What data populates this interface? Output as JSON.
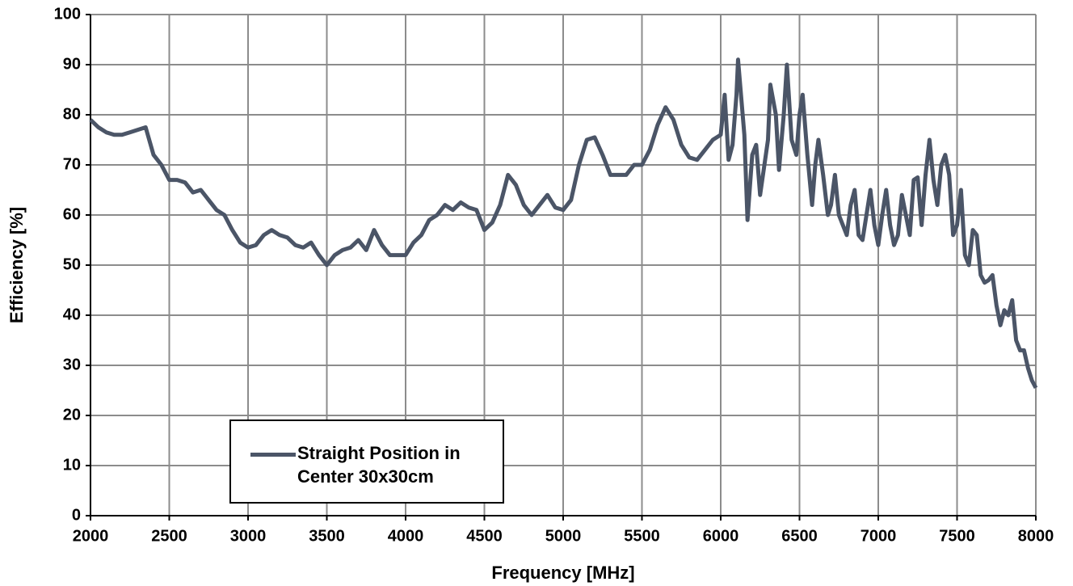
{
  "chart_data": {
    "type": "line",
    "xlabel": "Frequency [MHz]",
    "ylabel": "Efficiency [%]",
    "xlim": [
      2000,
      8000
    ],
    "xticks": [
      2000,
      2500,
      3000,
      3500,
      4000,
      4500,
      5000,
      5500,
      6000,
      6500,
      7000,
      7500,
      8000
    ],
    "ylim": [
      0,
      100
    ],
    "yticks": [
      0,
      10,
      20,
      30,
      40,
      50,
      60,
      70,
      80,
      90,
      100
    ],
    "grid": true,
    "legend": "lower left",
    "x": [
      2000,
      2050,
      2100,
      2150,
      2200,
      2250,
      2300,
      2350,
      2400,
      2450,
      2500,
      2550,
      2600,
      2650,
      2700,
      2750,
      2800,
      2850,
      2900,
      2950,
      3000,
      3050,
      3100,
      3150,
      3200,
      3250,
      3300,
      3350,
      3400,
      3450,
      3500,
      3550,
      3600,
      3650,
      3700,
      3750,
      3800,
      3850,
      3900,
      3950,
      4000,
      4050,
      4100,
      4150,
      4200,
      4250,
      4300,
      4350,
      4400,
      4450,
      4500,
      4550,
      4600,
      4650,
      4700,
      4750,
      4800,
      4850,
      4900,
      4950,
      5000,
      5050,
      5100,
      5150,
      5200,
      5250,
      5300,
      5350,
      5400,
      5450,
      5500,
      5550,
      5600,
      5650,
      5700,
      5750,
      5800,
      5850,
      5900,
      5950,
      6000,
      6025,
      6050,
      6075,
      6100,
      6110,
      6150,
      6170,
      6200,
      6225,
      6250,
      6300,
      6315,
      6350,
      6370,
      6400,
      6420,
      6450,
      6480,
      6500,
      6520,
      6550,
      6580,
      6600,
      6620,
      6650,
      6680,
      6700,
      6725,
      6750,
      6800,
      6825,
      6850,
      6875,
      6900,
      6950,
      6975,
      7000,
      7025,
      7050,
      7075,
      7100,
      7125,
      7150,
      7175,
      7200,
      7225,
      7250,
      7275,
      7300,
      7325,
      7350,
      7375,
      7400,
      7425,
      7450,
      7475,
      7500,
      7525,
      7550,
      7575,
      7600,
      7625,
      7650,
      7675,
      7700,
      7725,
      7750,
      7775,
      7800,
      7825,
      7850,
      7875,
      7900,
      7925,
      7950,
      7975,
      8000
    ],
    "series": [
      {
        "name": "Straight Position in Center 30x30cm",
        "color": "#4b5567",
        "values": [
          79,
          77.5,
          76.5,
          76,
          76,
          76.5,
          77,
          77.5,
          72,
          70,
          67,
          67,
          66.5,
          64.5,
          65,
          63,
          61,
          60,
          57,
          54.5,
          53.5,
          54,
          56,
          57,
          56,
          55.5,
          54,
          53.5,
          54.5,
          52,
          50,
          52,
          53,
          53.5,
          55,
          53,
          57,
          54,
          52,
          52,
          52,
          54.5,
          56,
          59,
          60,
          62,
          61,
          62.5,
          61.5,
          61,
          57,
          58.5,
          62,
          68,
          66,
          62,
          60,
          62,
          64,
          61.5,
          61,
          63,
          70,
          75,
          75.5,
          72,
          68,
          68,
          68,
          70,
          70,
          73,
          78,
          81.5,
          79,
          74,
          71.5,
          71,
          73,
          75,
          76,
          84,
          71,
          74,
          84,
          91,
          76,
          59,
          72,
          74,
          64,
          75,
          86,
          80,
          69,
          80,
          90,
          75,
          72,
          80,
          84,
          72,
          62,
          70,
          75,
          68,
          60,
          62,
          68,
          60,
          56,
          62,
          65,
          56,
          55,
          65,
          58,
          54,
          60,
          65,
          58,
          54,
          56,
          64,
          60,
          56,
          67,
          67.5,
          58,
          68,
          75,
          67,
          62,
          70,
          72,
          68,
          56,
          58,
          65,
          52,
          50,
          57,
          56,
          48,
          46.5,
          47,
          48,
          42,
          38,
          41,
          40,
          43,
          35,
          33,
          33,
          29.5,
          27,
          25.5
        ]
      }
    ]
  }
}
